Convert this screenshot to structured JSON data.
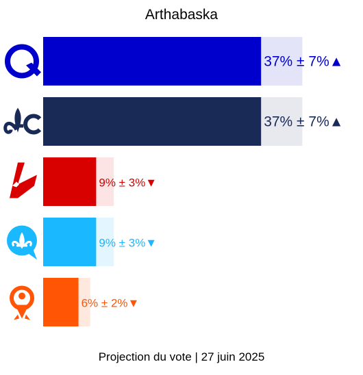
{
  "title": "Arthabaska",
  "footer": "Projection du vote | 27 juin 2025",
  "chart_data": {
    "type": "bar",
    "orientation": "horizontal",
    "title": "Arthabaska",
    "xlim": [
      0,
      100
    ],
    "series": [
      {
        "party_icon": "cpq-q-logo-icon",
        "value": 37,
        "margin": 7,
        "trend": "up",
        "label": "37% ± 7%▲",
        "color": "#0000cc",
        "light_color": "#e4e4f8",
        "text_color": "#0000cc"
      },
      {
        "party_icon": "pq-fleur-de-lys-logo-icon",
        "value": 37,
        "margin": 7,
        "trend": "up",
        "label": "37% ± 7%▲",
        "color": "#1a2a57",
        "light_color": "#e8e9ef",
        "text_color": "#1a2a57"
      },
      {
        "party_icon": "plq-liberal-logo-icon",
        "value": 9,
        "margin": 3,
        "trend": "down",
        "label": "9% ± 3%▼",
        "color": "#d90000",
        "light_color": "#fde4e4",
        "text_color": "#d90000"
      },
      {
        "party_icon": "caq-speech-bubble-logo-icon",
        "value": 9,
        "margin": 3,
        "trend": "down",
        "label": "9% ± 3%▼",
        "color": "#1ab8ff",
        "light_color": "#e3f6ff",
        "text_color": "#1ab8ff"
      },
      {
        "party_icon": "qs-person-logo-icon",
        "value": 6,
        "margin": 2,
        "trend": "down",
        "label": "6% ± 2%▼",
        "color": "#ff5505",
        "light_color": "#ffe9df",
        "text_color": "#ff5505"
      }
    ]
  }
}
